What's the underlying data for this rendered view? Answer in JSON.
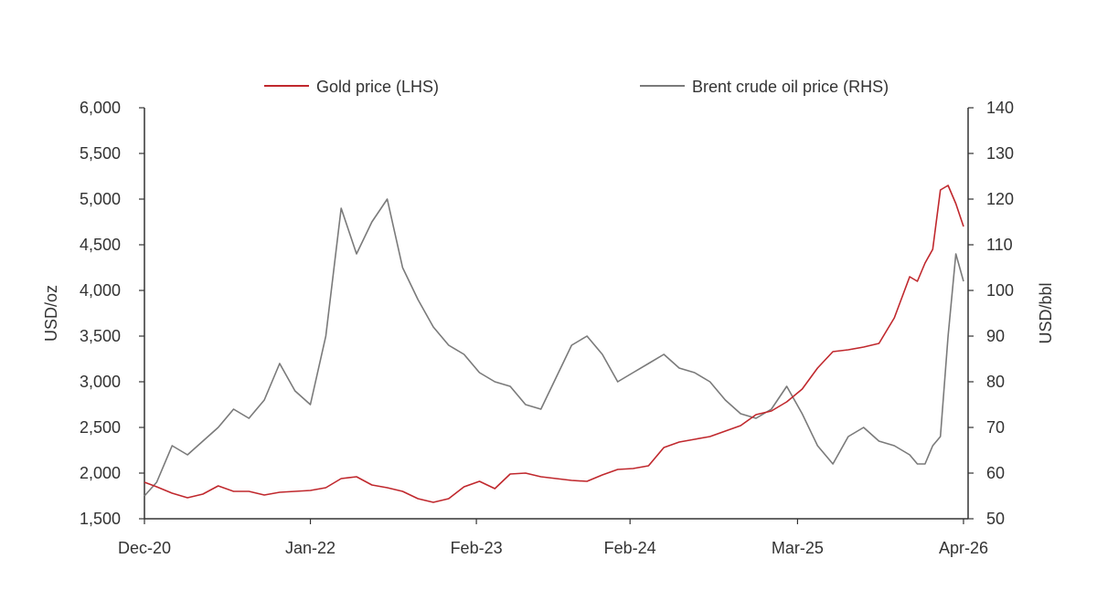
{
  "chart_data": {
    "type": "line",
    "title": "",
    "xlabel": "",
    "ylabel_left": "USD/oz",
    "ylabel_right": "USD/bbl",
    "x_tick_labels": [
      "Dec-20",
      "Jan-22",
      "Feb-23",
      "Feb-24",
      "Mar-25",
      "Apr-26"
    ],
    "x_range": [
      2020.92,
      2026.28
    ],
    "x_tick_values": [
      2020.92,
      2022.0,
      2023.08,
      2024.08,
      2025.17,
      2026.25
    ],
    "ylim_left": [
      1500,
      6000
    ],
    "yticks_left": [
      "1,500",
      "2,000",
      "2,500",
      "3,000",
      "3,500",
      "4,000",
      "4,500",
      "5,000",
      "5,500",
      "6,000"
    ],
    "ylim_right": [
      50,
      140
    ],
    "yticks_right": [
      "50",
      "60",
      "70",
      "80",
      "90",
      "100",
      "110",
      "120",
      "130",
      "140"
    ],
    "legend_position": "top-center",
    "grid": false,
    "series": [
      {
        "name": "Gold price (LHS)",
        "axis": "left",
        "color": "#c0282d",
        "x": [
          2020.92,
          2021.0,
          2021.1,
          2021.2,
          2021.3,
          2021.4,
          2021.5,
          2021.6,
          2021.7,
          2021.8,
          2021.9,
          2022.0,
          2022.1,
          2022.2,
          2022.3,
          2022.4,
          2022.5,
          2022.6,
          2022.7,
          2022.8,
          2022.9,
          2023.0,
          2023.1,
          2023.2,
          2023.3,
          2023.4,
          2023.5,
          2023.6,
          2023.7,
          2023.8,
          2023.9,
          2024.0,
          2024.1,
          2024.2,
          2024.3,
          2024.4,
          2024.5,
          2024.6,
          2024.7,
          2024.8,
          2024.9,
          2025.0,
          2025.1,
          2025.2,
          2025.3,
          2025.4,
          2025.5,
          2025.6,
          2025.7,
          2025.8,
          2025.9,
          2025.95,
          2026.0,
          2026.05,
          2026.1,
          2026.15,
          2026.2,
          2026.25
        ],
        "values": [
          1900,
          1850,
          1780,
          1730,
          1770,
          1860,
          1800,
          1800,
          1760,
          1790,
          1800,
          1810,
          1840,
          1940,
          1960,
          1870,
          1840,
          1800,
          1720,
          1680,
          1720,
          1850,
          1910,
          1830,
          1990,
          2000,
          1960,
          1940,
          1920,
          1910,
          1980,
          2040,
          2050,
          2080,
          2280,
          2340,
          2370,
          2400,
          2460,
          2520,
          2640,
          2680,
          2780,
          2920,
          3150,
          3330,
          3350,
          3380,
          3420,
          3700,
          4150,
          4100,
          4300,
          4450,
          5100,
          5150,
          4950,
          4700
        ]
      },
      {
        "name": "Brent crude oil price (RHS)",
        "axis": "right",
        "color": "#7a7a7a",
        "x": [
          2020.92,
          2021.0,
          2021.1,
          2021.2,
          2021.3,
          2021.4,
          2021.5,
          2021.6,
          2021.7,
          2021.8,
          2021.9,
          2022.0,
          2022.1,
          2022.2,
          2022.3,
          2022.4,
          2022.5,
          2022.6,
          2022.7,
          2022.8,
          2022.9,
          2023.0,
          2023.1,
          2023.2,
          2023.3,
          2023.4,
          2023.5,
          2023.6,
          2023.7,
          2023.8,
          2023.9,
          2024.0,
          2024.1,
          2024.2,
          2024.3,
          2024.4,
          2024.5,
          2024.6,
          2024.7,
          2024.8,
          2024.9,
          2025.0,
          2025.1,
          2025.2,
          2025.3,
          2025.4,
          2025.5,
          2025.6,
          2025.7,
          2025.8,
          2025.9,
          2025.95,
          2026.0,
          2026.05,
          2026.1,
          2026.15,
          2026.2,
          2026.25
        ],
        "values": [
          55,
          58,
          66,
          64,
          67,
          70,
          74,
          72,
          76,
          84,
          78,
          75,
          90,
          118,
          108,
          115,
          120,
          105,
          98,
          92,
          88,
          86,
          82,
          80,
          79,
          75,
          74,
          81,
          88,
          90,
          86,
          80,
          82,
          84,
          86,
          83,
          82,
          80,
          76,
          73,
          72,
          74,
          79,
          73,
          66,
          62,
          68,
          70,
          67,
          66,
          64,
          62,
          62,
          66,
          68,
          90,
          108,
          102
        ]
      }
    ]
  },
  "legend": {
    "gold_label": "Gold price (LHS)",
    "oil_label": "Brent crude oil price (RHS)"
  }
}
